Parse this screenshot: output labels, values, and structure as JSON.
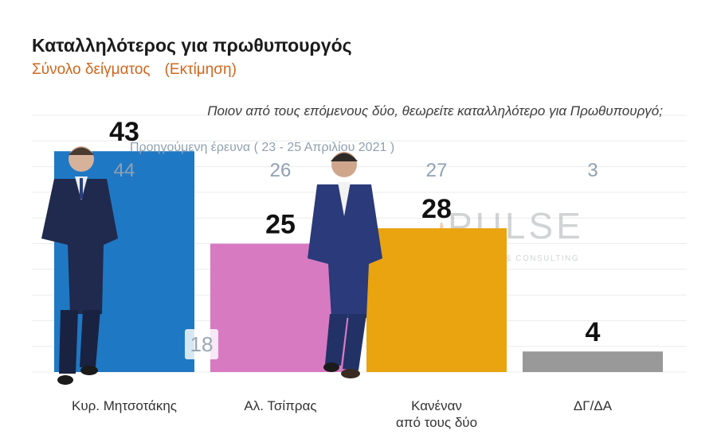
{
  "header": {
    "title": "Καταλληλότερος για πρωθυπουργός",
    "subtitle": "Σύνολο δείγματος",
    "subtitle_note": "(Εκτίμηση)",
    "question": "Ποιον από τους επόμενους δύο, θεωρείτε καταλληλότερο για Πρωθυπουργό;"
  },
  "previous_survey_label": "Προηγούμενη έρευνα ( 23 - 25 Απριλίου 2021 )",
  "inner_label": "18",
  "watermark": {
    "brand": "PULSE",
    "tagline": "RESEARCH & CONSULTING"
  },
  "chart_data": {
    "type": "bar",
    "categories": [
      [
        "Κυρ. Μητσοτάκης"
      ],
      [
        "Αλ. Τσίπρας"
      ],
      [
        "Κανέναν",
        "από τους δύο"
      ],
      [
        "ΔΓ/ΔΑ"
      ]
    ],
    "series": [
      {
        "values": [
          43,
          25,
          28,
          4
        ]
      },
      {
        "values": [
          44,
          26,
          27,
          3
        ]
      }
    ],
    "colors": [
      "#1f78c4",
      "#d77ac2",
      "#e9a40f",
      "#999999"
    ],
    "ylim": [
      0,
      50
    ],
    "grid": true
  }
}
